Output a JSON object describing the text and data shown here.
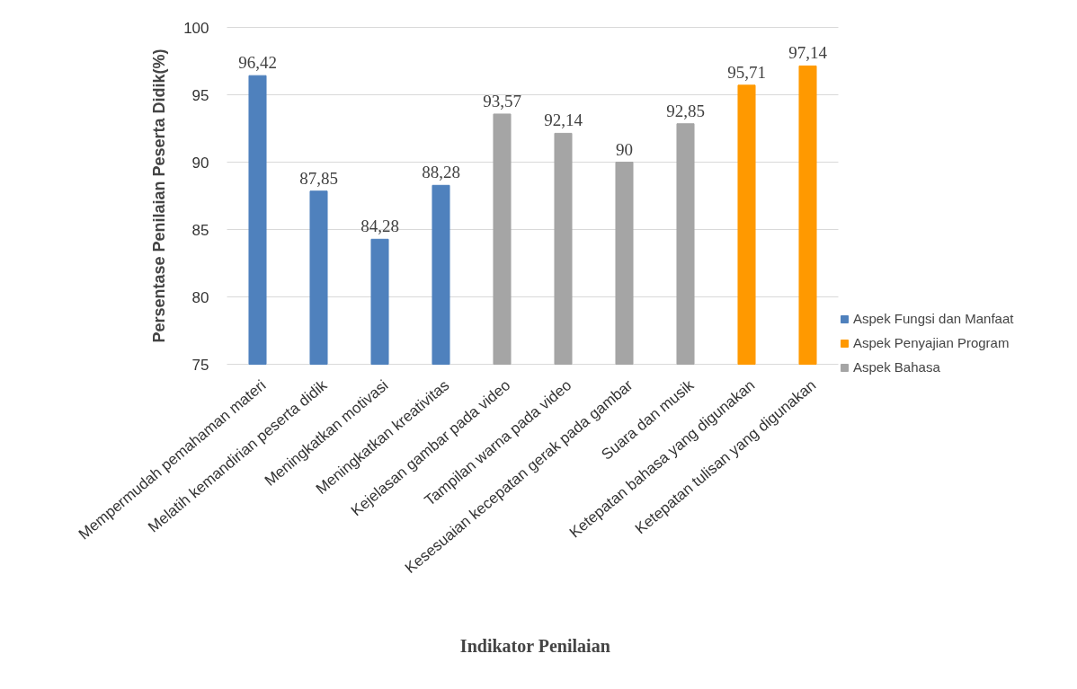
{
  "chart_data": {
    "type": "bar",
    "xlabel": "Indikator Penilaian",
    "ylabel": "Persentase Penilaian Peserta Didik(%)",
    "categories": [
      "Mempermudah pemahaman materi",
      "Melatih kemandirian peserta didik",
      "Meningkatkan motivasi",
      "Meningkatkan kreativitas",
      "Kejelasan gambar pada video",
      "Tampilan warna pada video",
      "Kesesuaian kecepatan gerak pada gambar",
      "Suara dan musik",
      "Ketepatan bahasa yang digunakan",
      "Ketepatan tulisan yang digunakan"
    ],
    "series": [
      {
        "name": "Aspek Fungsi dan Manfaat",
        "color": "#4f81bd",
        "values": [
          96.42,
          87.85,
          84.28,
          88.28,
          null,
          null,
          null,
          null,
          null,
          null
        ],
        "value_labels": [
          "96,42",
          "87,85",
          "84,28",
          "88,28",
          null,
          null,
          null,
          null,
          null,
          null
        ]
      },
      {
        "name": "Aspek Penyajian Program",
        "color": "#ff9900",
        "values": [
          null,
          null,
          null,
          null,
          null,
          null,
          null,
          null,
          95.71,
          97.14
        ],
        "value_labels": [
          null,
          null,
          null,
          null,
          null,
          null,
          null,
          null,
          "95,71",
          "97,14"
        ]
      },
      {
        "name": "Aspek Bahasa",
        "color": "#a5a5a5",
        "values": [
          null,
          null,
          null,
          null,
          93.57,
          92.14,
          90,
          92.85,
          null,
          null
        ],
        "value_labels": [
          null,
          null,
          null,
          null,
          "93,57",
          "92,14",
          "90",
          "92,85",
          null,
          null
        ]
      }
    ],
    "ylim": [
      75,
      100
    ],
    "yticks": [
      75,
      80,
      85,
      90,
      95,
      100
    ],
    "grid": "y",
    "legend": "right"
  }
}
